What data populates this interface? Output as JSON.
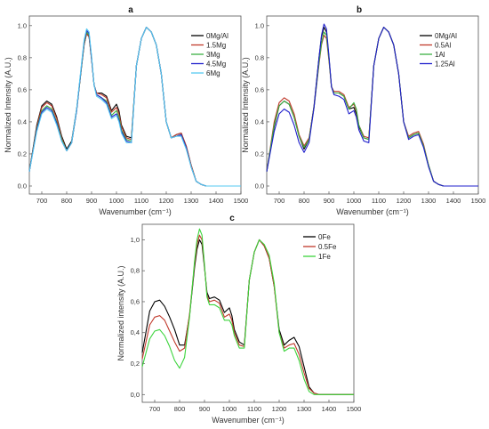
{
  "chart_data": [
    {
      "type": "line",
      "title": "a",
      "xlabel": "Wavenumber (cm⁻¹)",
      "ylabel": "Normalized Intensity (A.U.)",
      "xlim": [
        650,
        1500
      ],
      "ylim": [
        -0.05,
        1.06
      ],
      "xticks": [
        "700",
        "800",
        "900",
        "1000",
        "1100",
        "1200",
        "1300",
        "1400",
        "1500"
      ],
      "yticks": [
        "0.0",
        "0.2",
        "0.4",
        "0.6",
        "0.8",
        "1.0"
      ],
      "legend_position": "top-right",
      "grid": false,
      "x": [
        650,
        680,
        700,
        720,
        740,
        760,
        780,
        800,
        820,
        840,
        860,
        870,
        880,
        890,
        900,
        910,
        920,
        940,
        960,
        980,
        1000,
        1010,
        1020,
        1040,
        1060,
        1080,
        1100,
        1120,
        1140,
        1160,
        1180,
        1200,
        1220,
        1240,
        1260,
        1280,
        1300,
        1320,
        1340,
        1360,
        1400,
        1450,
        1500
      ],
      "series": [
        {
          "name": "0Mg/Al",
          "color": "#000000",
          "values": [
            0.09,
            0.38,
            0.5,
            0.53,
            0.51,
            0.43,
            0.31,
            0.23,
            0.28,
            0.48,
            0.75,
            0.88,
            0.95,
            0.93,
            0.79,
            0.63,
            0.58,
            0.58,
            0.56,
            0.47,
            0.51,
            0.47,
            0.38,
            0.31,
            0.3,
            0.75,
            0.92,
            0.99,
            0.96,
            0.88,
            0.7,
            0.4,
            0.3,
            0.32,
            0.33,
            0.25,
            0.13,
            0.03,
            0.01,
            0.0,
            0.0,
            0.0,
            0.0
          ]
        },
        {
          "name": "1.5Mg",
          "color": "#c0392b",
          "values": [
            0.09,
            0.37,
            0.49,
            0.52,
            0.5,
            0.42,
            0.3,
            0.22,
            0.27,
            0.47,
            0.75,
            0.88,
            0.95,
            0.93,
            0.79,
            0.63,
            0.58,
            0.57,
            0.55,
            0.46,
            0.49,
            0.45,
            0.37,
            0.3,
            0.29,
            0.75,
            0.92,
            0.99,
            0.96,
            0.88,
            0.7,
            0.4,
            0.3,
            0.32,
            0.33,
            0.25,
            0.13,
            0.03,
            0.01,
            0.0,
            0.0,
            0.0,
            0.0
          ]
        },
        {
          "name": "3Mg",
          "color": "#3cb043",
          "values": [
            0.09,
            0.36,
            0.47,
            0.5,
            0.48,
            0.4,
            0.29,
            0.22,
            0.27,
            0.47,
            0.75,
            0.89,
            0.96,
            0.94,
            0.8,
            0.63,
            0.57,
            0.55,
            0.53,
            0.44,
            0.47,
            0.43,
            0.35,
            0.29,
            0.28,
            0.75,
            0.92,
            0.99,
            0.96,
            0.88,
            0.7,
            0.4,
            0.3,
            0.31,
            0.32,
            0.24,
            0.12,
            0.03,
            0.01,
            0.0,
            0.0,
            0.0,
            0.0
          ]
        },
        {
          "name": "4.5Mg",
          "color": "#1f1fcc",
          "values": [
            0.09,
            0.35,
            0.46,
            0.49,
            0.47,
            0.39,
            0.28,
            0.22,
            0.27,
            0.47,
            0.76,
            0.9,
            0.97,
            0.95,
            0.8,
            0.63,
            0.57,
            0.55,
            0.52,
            0.43,
            0.45,
            0.41,
            0.34,
            0.28,
            0.27,
            0.75,
            0.92,
            0.99,
            0.96,
            0.88,
            0.7,
            0.4,
            0.3,
            0.31,
            0.32,
            0.24,
            0.12,
            0.03,
            0.01,
            0.0,
            0.0,
            0.0,
            0.0
          ]
        },
        {
          "name": "6Mg",
          "color": "#56c8f0",
          "values": [
            0.09,
            0.34,
            0.45,
            0.48,
            0.46,
            0.38,
            0.28,
            0.22,
            0.27,
            0.48,
            0.77,
            0.91,
            0.98,
            0.96,
            0.81,
            0.63,
            0.56,
            0.54,
            0.51,
            0.42,
            0.44,
            0.4,
            0.33,
            0.27,
            0.27,
            0.75,
            0.92,
            0.99,
            0.96,
            0.88,
            0.7,
            0.4,
            0.3,
            0.31,
            0.31,
            0.23,
            0.12,
            0.03,
            0.01,
            0.0,
            0.0,
            0.0,
            0.0
          ]
        }
      ]
    },
    {
      "type": "line",
      "title": "b",
      "xlabel": "Wavenumber (cm⁻¹)",
      "ylabel": "Normalized Intensity (A.U.)",
      "xlim": [
        650,
        1500
      ],
      "ylim": [
        -0.05,
        1.06
      ],
      "xticks": [
        "700",
        "800",
        "900",
        "1000",
        "1100",
        "1200",
        "1300",
        "1400",
        "1500"
      ],
      "yticks": [
        "0.0",
        "0.2",
        "0.4",
        "0.6",
        "0.8",
        "1.0"
      ],
      "legend_position": "top-right",
      "grid": false,
      "x": [
        650,
        680,
        700,
        720,
        740,
        760,
        780,
        800,
        820,
        840,
        860,
        870,
        880,
        890,
        900,
        910,
        920,
        940,
        960,
        980,
        1000,
        1010,
        1020,
        1040,
        1060,
        1080,
        1100,
        1120,
        1140,
        1160,
        1180,
        1200,
        1220,
        1240,
        1260,
        1280,
        1300,
        1320,
        1340,
        1360,
        1400,
        1450,
        1500
      ],
      "series": [
        {
          "name": "0Mg/Al",
          "color": "#000000",
          "values": [
            0.09,
            0.37,
            0.5,
            0.53,
            0.51,
            0.43,
            0.31,
            0.23,
            0.29,
            0.5,
            0.8,
            0.93,
            0.99,
            0.96,
            0.8,
            0.62,
            0.58,
            0.58,
            0.56,
            0.48,
            0.49,
            0.45,
            0.37,
            0.3,
            0.29,
            0.75,
            0.92,
            0.99,
            0.96,
            0.88,
            0.7,
            0.4,
            0.3,
            0.32,
            0.33,
            0.25,
            0.13,
            0.03,
            0.01,
            0.0,
            0.0,
            0.0,
            0.0
          ]
        },
        {
          "name": "0.5Al",
          "color": "#c0392b",
          "values": [
            0.09,
            0.4,
            0.52,
            0.55,
            0.53,
            0.45,
            0.32,
            0.25,
            0.3,
            0.49,
            0.76,
            0.88,
            0.94,
            0.92,
            0.78,
            0.62,
            0.59,
            0.59,
            0.57,
            0.49,
            0.51,
            0.47,
            0.38,
            0.31,
            0.3,
            0.75,
            0.92,
            0.99,
            0.96,
            0.88,
            0.7,
            0.4,
            0.31,
            0.33,
            0.34,
            0.26,
            0.13,
            0.03,
            0.01,
            0.0,
            0.0,
            0.0,
            0.0
          ]
        },
        {
          "name": "1Al",
          "color": "#3cb043",
          "values": [
            0.09,
            0.38,
            0.5,
            0.53,
            0.51,
            0.43,
            0.31,
            0.24,
            0.29,
            0.49,
            0.77,
            0.89,
            0.96,
            0.94,
            0.79,
            0.62,
            0.58,
            0.58,
            0.56,
            0.48,
            0.52,
            0.48,
            0.38,
            0.3,
            0.29,
            0.75,
            0.92,
            0.99,
            0.96,
            0.88,
            0.7,
            0.4,
            0.3,
            0.32,
            0.33,
            0.25,
            0.13,
            0.03,
            0.01,
            0.0,
            0.0,
            0.0,
            0.0
          ]
        },
        {
          "name": "1.25Al",
          "color": "#1f1fcc",
          "values": [
            0.09,
            0.34,
            0.45,
            0.48,
            0.46,
            0.38,
            0.27,
            0.21,
            0.27,
            0.49,
            0.8,
            0.94,
            1.01,
            0.98,
            0.81,
            0.62,
            0.57,
            0.56,
            0.54,
            0.45,
            0.47,
            0.43,
            0.35,
            0.28,
            0.27,
            0.75,
            0.92,
            0.99,
            0.96,
            0.88,
            0.7,
            0.4,
            0.29,
            0.31,
            0.32,
            0.24,
            0.12,
            0.03,
            0.01,
            0.0,
            0.0,
            0.0,
            0.0
          ]
        }
      ]
    },
    {
      "type": "line",
      "title": "c",
      "xlabel": "Wavenumber (cm⁻¹)",
      "ylabel": "Normalized intensity (A.U.)",
      "xlim": [
        650,
        1500
      ],
      "ylim": [
        -0.05,
        1.1
      ],
      "xticks": [
        "700",
        "800",
        "900",
        "1000",
        "1100",
        "1200",
        "1300",
        "1400",
        "1500"
      ],
      "yticks": [
        "0,0",
        "0,2",
        "0,4",
        "0,6",
        "0,8",
        "1,0"
      ],
      "legend_position": "top-right",
      "grid": false,
      "x": [
        650,
        680,
        700,
        720,
        740,
        760,
        780,
        800,
        820,
        840,
        860,
        870,
        880,
        890,
        900,
        910,
        920,
        940,
        960,
        980,
        1000,
        1010,
        1020,
        1040,
        1060,
        1080,
        1100,
        1120,
        1140,
        1160,
        1180,
        1200,
        1220,
        1240,
        1260,
        1280,
        1300,
        1320,
        1340,
        1360,
        1400,
        1450,
        1500
      ],
      "series": [
        {
          "name": "0Fe",
          "color": "#000000",
          "values": [
            0.27,
            0.54,
            0.6,
            0.61,
            0.57,
            0.5,
            0.42,
            0.32,
            0.32,
            0.51,
            0.82,
            0.94,
            1.0,
            0.97,
            0.82,
            0.66,
            0.62,
            0.63,
            0.61,
            0.53,
            0.56,
            0.51,
            0.42,
            0.34,
            0.32,
            0.74,
            0.92,
            1.0,
            0.96,
            0.88,
            0.7,
            0.42,
            0.32,
            0.35,
            0.37,
            0.31,
            0.18,
            0.05,
            0.01,
            0.0,
            0.0,
            0.0,
            0.0
          ]
        },
        {
          "name": "0.5Fe",
          "color": "#c0392b",
          "values": [
            0.23,
            0.45,
            0.5,
            0.51,
            0.48,
            0.41,
            0.34,
            0.28,
            0.3,
            0.52,
            0.84,
            0.97,
            1.03,
            1.0,
            0.83,
            0.64,
            0.6,
            0.61,
            0.59,
            0.5,
            0.52,
            0.48,
            0.4,
            0.32,
            0.31,
            0.74,
            0.92,
            1.0,
            0.96,
            0.88,
            0.7,
            0.4,
            0.3,
            0.32,
            0.33,
            0.26,
            0.14,
            0.04,
            0.01,
            0.0,
            0.0,
            0.0,
            0.0
          ]
        },
        {
          "name": "1Fe",
          "color": "#3cd43c",
          "values": [
            0.18,
            0.36,
            0.41,
            0.42,
            0.38,
            0.31,
            0.22,
            0.17,
            0.24,
            0.5,
            0.86,
            1.0,
            1.07,
            1.03,
            0.84,
            0.63,
            0.58,
            0.58,
            0.56,
            0.48,
            0.48,
            0.45,
            0.38,
            0.3,
            0.3,
            0.74,
            0.92,
            1.0,
            0.97,
            0.9,
            0.72,
            0.4,
            0.28,
            0.3,
            0.3,
            0.22,
            0.1,
            0.02,
            0.0,
            0.0,
            0.0,
            0.0,
            0.0
          ]
        }
      ]
    }
  ]
}
